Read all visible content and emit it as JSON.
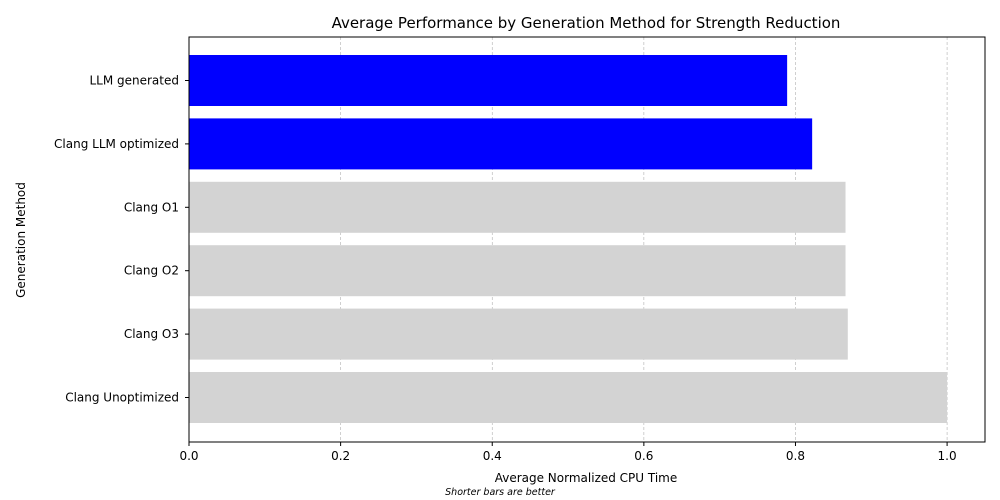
{
  "chart_data": {
    "type": "bar",
    "orientation": "horizontal",
    "title": "Average Performance by Generation Method for Strength Reduction",
    "xlabel": "Average Normalized CPU Time",
    "ylabel": "Generation Method",
    "footnote": "Shorter bars are better",
    "xlim": [
      0,
      1.05
    ],
    "xticks": [
      "0.0",
      "0.2",
      "0.4",
      "0.6",
      "0.8",
      "1.0"
    ],
    "grid": "vertical dashed",
    "categories": [
      "LLM generated",
      "Clang LLM optimized",
      "Clang O1",
      "Clang O2",
      "Clang O3",
      "Clang Unoptimized"
    ],
    "values": [
      0.789,
      0.822,
      0.866,
      0.866,
      0.869,
      1.0
    ],
    "colors": [
      "#0000ff",
      "#0000ff",
      "#d3d3d3",
      "#d3d3d3",
      "#d3d3d3",
      "#d3d3d3"
    ]
  }
}
